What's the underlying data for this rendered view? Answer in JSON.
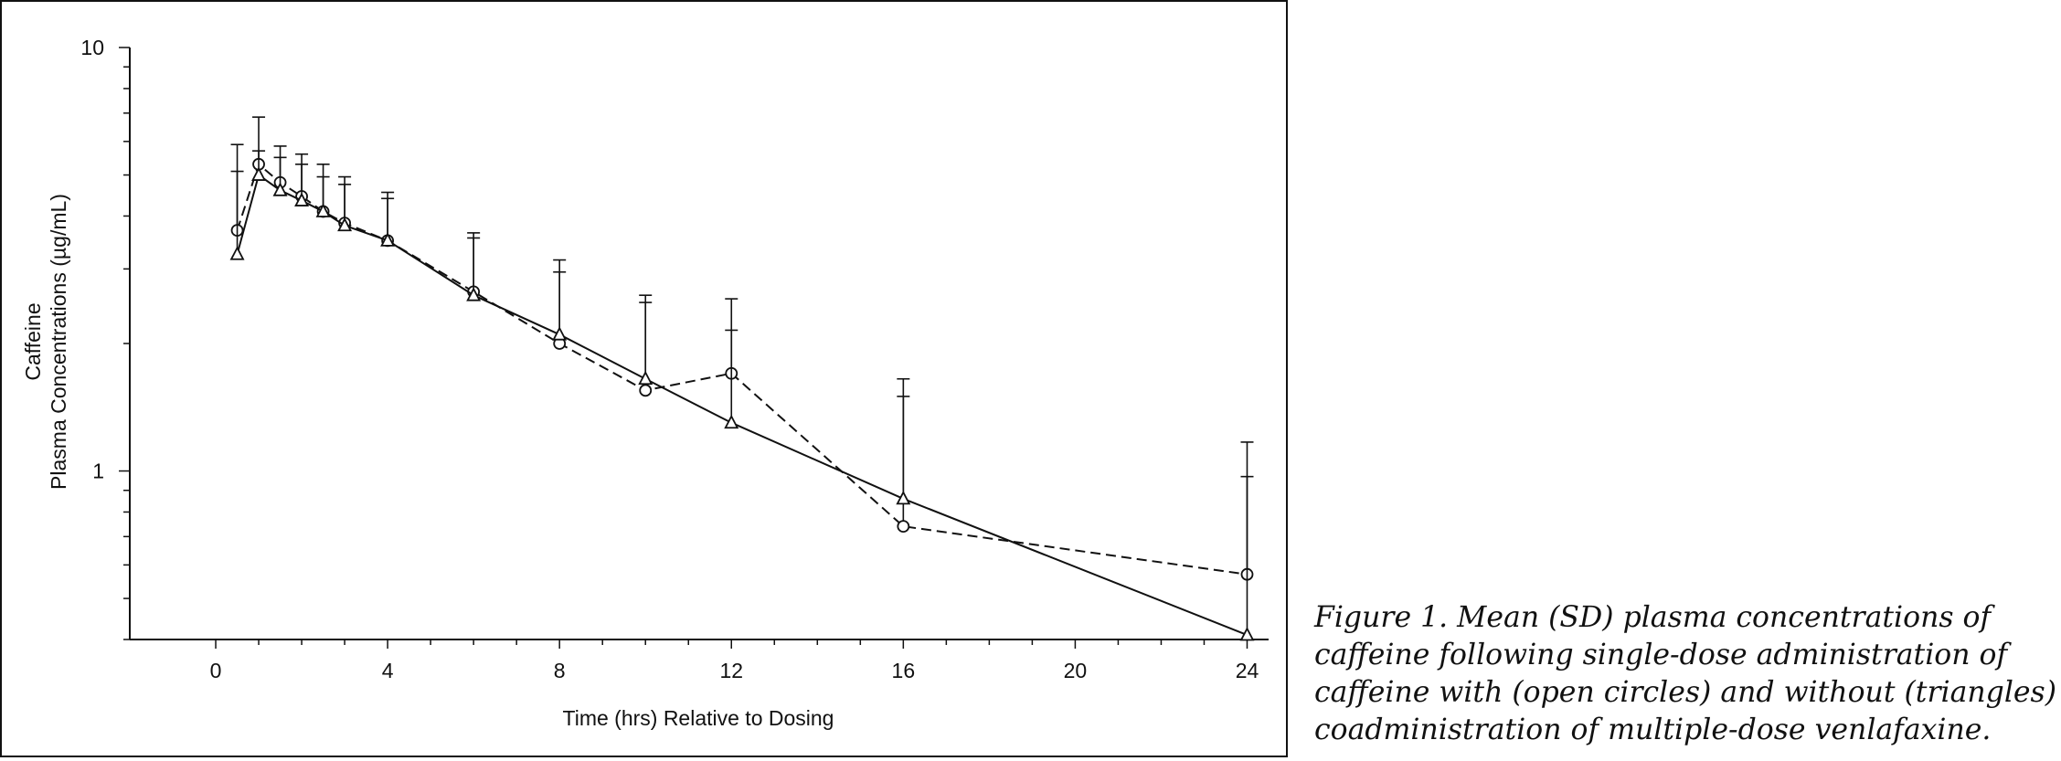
{
  "chart_data": {
    "type": "line",
    "title": "",
    "xlabel": "Time (hrs) Relative to Dosing",
    "ylabel_lines": [
      "Caffeine",
      "Plasma Concentrations (µg/mL)"
    ],
    "xlim": [
      -2,
      24.5
    ],
    "ylim": [
      0.4,
      10
    ],
    "y_scale": "log",
    "x_ticks": [
      0,
      4,
      8,
      12,
      16,
      20,
      24
    ],
    "y_tick_labels": [
      {
        "value": 1,
        "label": "1"
      },
      {
        "value": 10,
        "label": "10"
      }
    ],
    "grid": false,
    "series": [
      {
        "marker": "circle",
        "line": "dashed",
        "x": [
          0.5,
          1,
          1.5,
          2,
          2.5,
          3,
          4,
          6,
          8,
          10,
          12,
          16,
          24
        ],
        "y": [
          3.7,
          5.3,
          4.8,
          4.45,
          4.1,
          3.85,
          3.5,
          2.65,
          2.0,
          1.55,
          1.7,
          0.74,
          0.57
        ],
        "error_upper": [
          5.9,
          6.85,
          5.85,
          5.6,
          5.3,
          4.95,
          4.55,
          3.65,
          3.15,
          2.6,
          2.55,
          1.65,
          1.17
        ]
      },
      {
        "marker": "triangle",
        "line": "solid",
        "x": [
          0.5,
          1,
          1.5,
          2,
          2.5,
          3,
          4,
          6,
          8,
          10,
          12,
          16,
          24
        ],
        "y": [
          3.25,
          5.0,
          4.6,
          4.35,
          4.1,
          3.8,
          3.5,
          2.6,
          2.1,
          1.65,
          1.3,
          0.86,
          0.41
        ],
        "error_upper": [
          5.1,
          5.7,
          5.5,
          5.3,
          4.95,
          4.75,
          4.4,
          3.55,
          2.95,
          2.5,
          2.15,
          1.5,
          0.97
        ]
      }
    ]
  },
  "caption": {
    "lines": [
      "Figure 1.  Mean (SD) plasma concentrations of",
      "caffeine following single-dose administration of",
      "caffeine with (open circles) and without (triangles)",
      "coadministration of multiple-dose venlafaxine."
    ]
  }
}
